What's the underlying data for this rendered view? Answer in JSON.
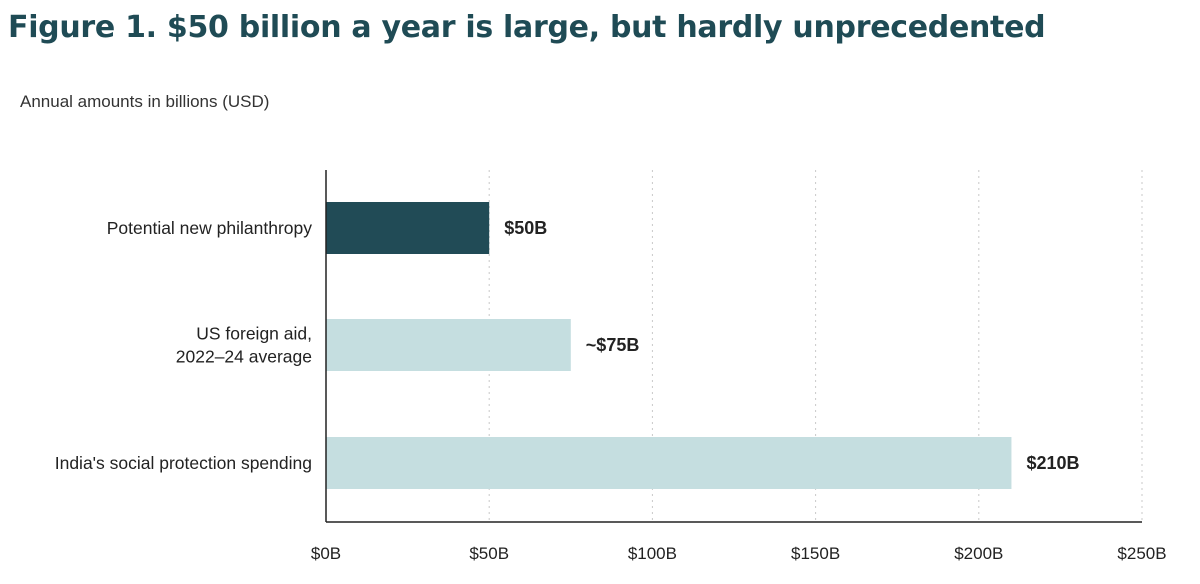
{
  "title": "Figure 1. $50 billion a year is large, but hardly unprecedented",
  "subtitle": "Annual amounts in billions (USD)",
  "chart_data": {
    "type": "bar",
    "orientation": "horizontal",
    "title": "Figure 1. $50 billion a year is large, but hardly unprecedented",
    "subtitle": "Annual amounts in billions (USD)",
    "categories": [
      [
        "Potential new philanthropy"
      ],
      [
        "US foreign aid,",
        "2022–24 average"
      ],
      [
        "India's social protection spending"
      ]
    ],
    "values": [
      50,
      75,
      210
    ],
    "value_labels": [
      "$50B",
      "~$75B",
      "$210B"
    ],
    "colors": [
      "#214b56",
      "#c5dee0",
      "#c5dee0"
    ],
    "xlim": [
      0,
      250
    ],
    "xticks": [
      0,
      50,
      100,
      150,
      200,
      250
    ],
    "xtick_labels": [
      "$0B",
      "$50B",
      "$100B",
      "$150B",
      "$200B",
      "$250B"
    ],
    "grid": "vertical dotted",
    "legend": "none"
  }
}
